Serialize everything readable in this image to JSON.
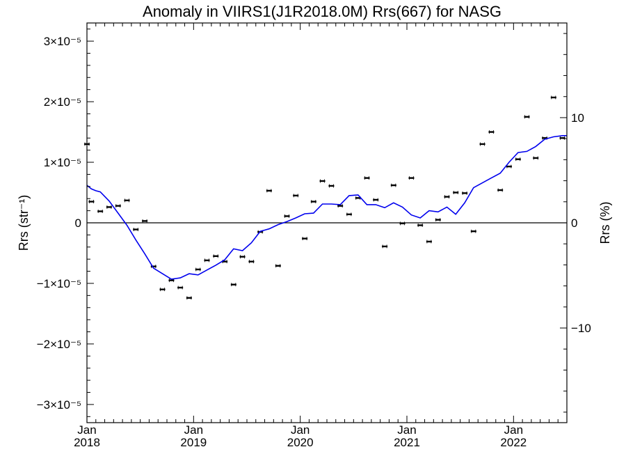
{
  "chart_data": {
    "type": "scatter",
    "title": "Anomaly in VIIRS1(J1R2018.0M) Rrs(667) for NASG",
    "ylabel_left": "Rrs (str⁻¹)",
    "ylabel_right": "Rrs (%)",
    "xlim": [
      2018.0,
      2022.5
    ],
    "ylim": [
      -3.3e-05,
      3.3e-05
    ],
    "ylim_right_percent": [
      -19,
      19
    ],
    "left_ticks": [
      {
        "value": 3e-05,
        "label": "3×10⁻⁵"
      },
      {
        "value": 2e-05,
        "label": "2×10⁻⁵"
      },
      {
        "value": 1e-05,
        "label": "1×10⁻⁵"
      },
      {
        "value": 0,
        "label": "0"
      },
      {
        "value": -1e-05,
        "label": "−1×10⁻⁵"
      },
      {
        "value": -2e-05,
        "label": "−2×10⁻⁵"
      },
      {
        "value": -3e-05,
        "label": "−3×10⁻⁵"
      }
    ],
    "right_ticks": [
      {
        "value": 10,
        "label": "10"
      },
      {
        "value": 0,
        "label": "0"
      },
      {
        "value": -10,
        "label": "−10"
      }
    ],
    "x_ticks": [
      {
        "value": 2018.0,
        "month": "Jan",
        "year": "2018"
      },
      {
        "value": 2019.0,
        "month": "Jan",
        "year": "2019"
      },
      {
        "value": 2020.0,
        "month": "Jan",
        "year": "2020"
      },
      {
        "value": 2021.0,
        "month": "Jan",
        "year": "2021"
      },
      {
        "value": 2022.0,
        "month": "Jan",
        "year": "2022"
      }
    ],
    "zero_line": true,
    "series": [
      {
        "kind": "points-with-errorbars",
        "color": "#000000",
        "x": [
          2018.0,
          2018.042,
          2018.125,
          2018.208,
          2018.292,
          2018.375,
          2018.458,
          2018.542,
          2018.625,
          2018.708,
          2018.792,
          2018.875,
          2018.958,
          2019.042,
          2019.125,
          2019.208,
          2019.292,
          2019.375,
          2019.458,
          2019.542,
          2019.625,
          2019.708,
          2019.792,
          2019.875,
          2019.958,
          2020.042,
          2020.125,
          2020.208,
          2020.292,
          2020.375,
          2020.458,
          2020.542,
          2020.625,
          2020.708,
          2020.792,
          2020.875,
          2020.958,
          2021.042,
          2021.125,
          2021.208,
          2021.292,
          2021.375,
          2021.458,
          2021.542,
          2021.625,
          2021.708,
          2021.792,
          2021.875,
          2021.958,
          2022.042,
          2022.125,
          2022.208,
          2022.292,
          2022.375,
          2022.458
        ],
        "y": [
          1.3e-05,
          3.5e-06,
          1.9e-06,
          2.6e-06,
          2.8e-06,
          3.7e-06,
          -1.1e-06,
          3e-07,
          -7.2e-06,
          -1.1e-05,
          -9.5e-06,
          -1.07e-05,
          -1.24e-05,
          -7.7e-06,
          -6.2e-06,
          -5.5e-06,
          -6.4e-06,
          -1.02e-05,
          -5.6e-06,
          -6.4e-06,
          -1.5e-06,
          5.3e-06,
          -7.1e-06,
          1.1e-06,
          4.5e-06,
          -2.6e-06,
          3.5e-06,
          6.9e-06,
          6.1e-06,
          2.8e-06,
          1.4e-06,
          4.1e-06,
          7.4e-06,
          3.8e-06,
          -3.9e-06,
          6.2e-06,
          -1e-07,
          7.4e-06,
          -4e-07,
          -3.1e-06,
          5e-07,
          4.3e-06,
          5e-06,
          4.9e-06,
          -1.4e-06,
          1.3e-05,
          1.5e-05,
          5.4e-06,
          9.3e-06,
          1.05e-05,
          1.75e-05,
          1.07e-05,
          1.4e-05,
          2.07e-05,
          1.4e-05
        ]
      },
      {
        "kind": "line",
        "color": "#0000ee",
        "x": [
          2018.0,
          2018.042,
          2018.083,
          2018.125,
          2018.208,
          2018.292,
          2018.375,
          2018.458,
          2018.542,
          2018.625,
          2018.708,
          2018.792,
          2018.875,
          2018.958,
          2019.042,
          2019.125,
          2019.208,
          2019.292,
          2019.375,
          2019.458,
          2019.542,
          2019.625,
          2019.708,
          2019.792,
          2019.875,
          2019.958,
          2020.042,
          2020.125,
          2020.208,
          2020.292,
          2020.375,
          2020.458,
          2020.542,
          2020.625,
          2020.708,
          2020.792,
          2020.875,
          2020.958,
          2021.042,
          2021.125,
          2021.208,
          2021.292,
          2021.375,
          2021.458,
          2021.542,
          2021.625,
          2021.708,
          2021.792,
          2021.875,
          2021.958,
          2022.042,
          2022.125,
          2022.208,
          2022.292,
          2022.375,
          2022.458,
          2022.5
        ],
        "y": [
          6.2e-06,
          5.6e-06,
          5.3e-06,
          5.1e-06,
          3.6e-06,
          1.6e-06,
          -4e-07,
          -2.8e-06,
          -5.1e-06,
          -7.5e-06,
          -8.4e-06,
          -9.3e-06,
          -9.1e-06,
          -8.4e-06,
          -8.6e-06,
          -7.8e-06,
          -7e-06,
          -6.1e-06,
          -4.3e-06,
          -4.6e-06,
          -3.3e-06,
          -1.4e-06,
          -1e-06,
          -3e-07,
          2e-07,
          8e-07,
          1.5e-06,
          1.6e-06,
          3.1e-06,
          3.1e-06,
          3e-06,
          4.5e-06,
          4.6e-06,
          3e-06,
          3e-06,
          2.5e-06,
          3.3e-06,
          2.6e-06,
          1.3e-06,
          8e-07,
          2e-06,
          1.8e-06,
          2.6e-06,
          1.4e-06,
          3.3e-06,
          5.8e-06,
          6.6e-06,
          7.4e-06,
          8.2e-06,
          1e-05,
          1.16e-05,
          1.18e-05,
          1.26e-05,
          1.38e-05,
          1.42e-05,
          1.44e-05,
          1.44e-05
        ]
      }
    ]
  }
}
